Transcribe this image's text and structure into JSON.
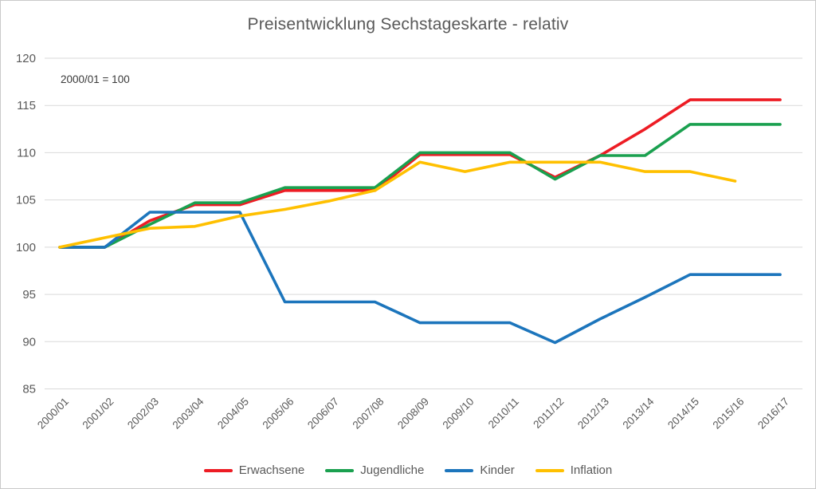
{
  "header": {
    "title": "Preisentwicklung Sechstageskarte - relativ",
    "note": "2000/01 = 100"
  },
  "chart_data": {
    "type": "line",
    "title": "Preisentwicklung Sechstageskarte - relativ",
    "annotation": "2000/01 = 100",
    "categories": [
      "2000/01",
      "2001/02",
      "2002/03",
      "2003/04",
      "2004/05",
      "2005/06",
      "2006/07",
      "2007/08",
      "2008/09",
      "2009/10",
      "2010/11",
      "2011/12",
      "2012/13",
      "2013/14",
      "2014/15",
      "2015/16",
      "2016/17"
    ],
    "series": [
      {
        "name": "Erwachsene",
        "color": "#ed1c24",
        "values": [
          100,
          100,
          102.8,
          104.5,
          104.5,
          106,
          106,
          106,
          109.8,
          109.8,
          109.8,
          107.4,
          109.7,
          112.5,
          115.6,
          115.6,
          115.6
        ]
      },
      {
        "name": "Jugendliche",
        "color": "#1aa04f",
        "values": [
          100,
          100,
          102.4,
          104.7,
          104.7,
          106.3,
          106.3,
          106.3,
          110,
          110,
          110,
          107.2,
          109.7,
          109.7,
          113,
          113,
          113
        ]
      },
      {
        "name": "Kinder",
        "color": "#1c75bc",
        "values": [
          100,
          100,
          103.7,
          103.7,
          103.7,
          94.2,
          94.2,
          94.2,
          92,
          92,
          92,
          89.9,
          92.4,
          94.7,
          97.1,
          97.1,
          97.1
        ]
      },
      {
        "name": "Inflation",
        "color": "#ffc000",
        "values": [
          100,
          101,
          102,
          102.2,
          103.3,
          104,
          104.9,
          106,
          109,
          108,
          109,
          109,
          109,
          108,
          108,
          107,
          null
        ]
      }
    ],
    "y_axis": {
      "min": 85,
      "max": 120,
      "step": 5,
      "ticks": [
        120,
        115,
        110,
        105,
        100,
        95,
        90,
        85
      ]
    },
    "x_axis": {
      "label_rotation_deg": 45
    },
    "grid": true,
    "legend_position": "bottom",
    "colors": {
      "grid_line": "#d9d9d9",
      "axis_text": "#595959",
      "title_text": "#595959",
      "note_text": "#3a3a3a",
      "background": "#ffffff",
      "border": "#c9c9c9"
    }
  }
}
